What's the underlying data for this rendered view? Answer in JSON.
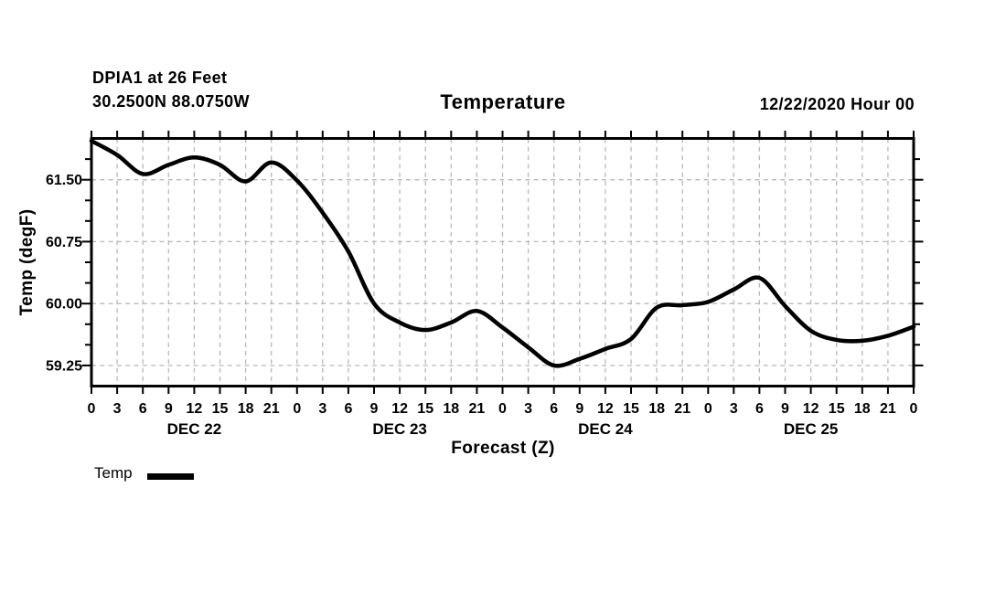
{
  "header": {
    "station": "DPIA1 at 26 Feet",
    "location": "30.2500N 88.0750W",
    "title": "Temperature",
    "run": "12/22/2020 Hour 00"
  },
  "legend": {
    "label": "Temp"
  },
  "colors": {
    "background": "#ffffff",
    "text": "#000000",
    "axis": "#000000",
    "grid": "#b8b8b8",
    "line": "#000000"
  },
  "chart_data": {
    "type": "line",
    "title": "Temperature",
    "xlabel": "Forecast (Z)",
    "ylabel": "Temp (degF)",
    "legend_position": "bottom-left",
    "grid": {
      "style": "dashed",
      "color": "#b8b8b8"
    },
    "xlim": [
      0,
      96
    ],
    "ylim": [
      59.0,
      62.0
    ],
    "x_hours": [
      0,
      3,
      6,
      9,
      12,
      15,
      18,
      21,
      24,
      27,
      30,
      33,
      36,
      39,
      42,
      45,
      48,
      51,
      54,
      57,
      60,
      63,
      66,
      69,
      72,
      75,
      78,
      81,
      84,
      87,
      90,
      93,
      96
    ],
    "x_tick_labels": [
      "0",
      "3",
      "6",
      "9",
      "12",
      "15",
      "18",
      "21",
      "0",
      "3",
      "6",
      "9",
      "12",
      "15",
      "18",
      "21",
      "0",
      "3",
      "6",
      "9",
      "12",
      "15",
      "18",
      "21",
      "0",
      "3",
      "6",
      "9",
      "12",
      "15",
      "18",
      "21",
      "0"
    ],
    "day_labels": [
      {
        "label": "DEC 22",
        "center_hour": 12
      },
      {
        "label": "DEC 23",
        "center_hour": 36
      },
      {
        "label": "DEC 24",
        "center_hour": 60
      },
      {
        "label": "DEC 25",
        "center_hour": 84
      }
    ],
    "y_major_ticks": [
      59.25,
      60.0,
      60.75,
      61.5
    ],
    "y_tick_labels": [
      "59.25",
      "60.00",
      "60.75",
      "61.50"
    ],
    "y_minor_step": 0.25,
    "line_width": 4.5,
    "series": [
      {
        "name": "Temp",
        "color": "#000000",
        "values": [
          61.97,
          61.8,
          61.57,
          61.68,
          61.77,
          61.68,
          61.48,
          61.71,
          61.49,
          61.1,
          60.63,
          60.0,
          59.77,
          59.68,
          59.77,
          59.91,
          59.71,
          59.47,
          59.25,
          59.33,
          59.45,
          59.57,
          59.95,
          59.98,
          60.02,
          60.17,
          60.31,
          59.97,
          59.67,
          59.56,
          59.55,
          59.61,
          59.72
        ]
      }
    ]
  }
}
